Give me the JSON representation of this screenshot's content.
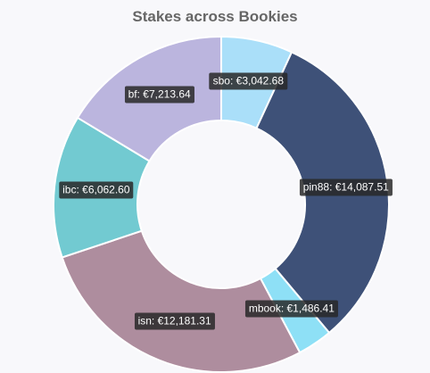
{
  "chart_data": {
    "type": "pie",
    "variant": "donut",
    "title": "Stakes across Bookies",
    "currency": "€",
    "slices": [
      {
        "name": "sbo",
        "value": 3042.68,
        "label": "sbo: €3,042.68",
        "color": "#aadff9"
      },
      {
        "name": "pin88",
        "value": 14087.51,
        "label": "pin88: €14,087.51",
        "color": "#3e5178"
      },
      {
        "name": "mbook",
        "value": 1486.41,
        "label": "mbook: €1,486.41",
        "color": "#8ee0f6"
      },
      {
        "name": "isn",
        "value": 12181.31,
        "label": "isn: €12,181.31",
        "color": "#ae8d9e"
      },
      {
        "name": "ibc",
        "value": 6062.6,
        "label": "ibc: €6,062.60",
        "color": "#72cad1"
      },
      {
        "name": "bf",
        "value": 7213.64,
        "label": "bf: €7,213.64",
        "color": "#bbb5de"
      }
    ],
    "legend": "none"
  }
}
